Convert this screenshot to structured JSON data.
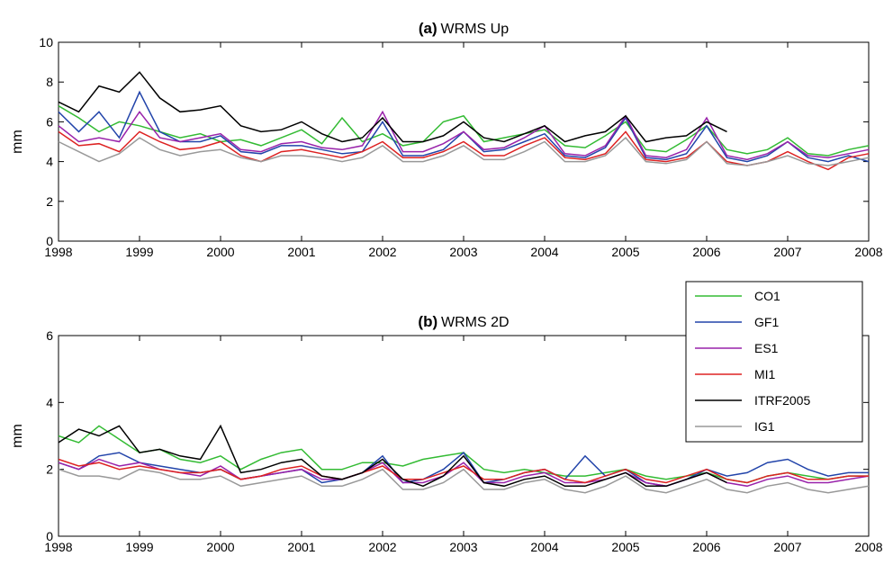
{
  "chart_data": [
    {
      "type": "line",
      "panel_label": "(a)",
      "title": "WRMS Up",
      "y_label": "mm",
      "x": [
        1998,
        1998.25,
        1998.5,
        1998.75,
        1999,
        1999.25,
        1999.5,
        1999.75,
        2000,
        2000.25,
        2000.5,
        2000.75,
        2001,
        2001.25,
        2001.5,
        2001.75,
        2002,
        2002.25,
        2002.5,
        2002.75,
        2003,
        2003.25,
        2003.5,
        2003.75,
        2004,
        2004.25,
        2004.5,
        2004.75,
        2005,
        2005.25,
        2005.5,
        2005.75,
        2006,
        2006.25,
        2006.5,
        2006.75,
        2007,
        2007.25,
        2007.5,
        2007.75,
        2008
      ],
      "xlim": [
        1998,
        2008
      ],
      "xticks": [
        1998,
        1999,
        2000,
        2001,
        2002,
        2003,
        2004,
        2005,
        2006,
        2007,
        2008
      ],
      "ylim": [
        0,
        10
      ],
      "yticks": [
        0,
        2,
        4,
        6,
        8,
        10
      ],
      "legend": false,
      "series": [
        {
          "color": "#33bb33",
          "values": [
            6.8,
            6.2,
            5.5,
            6.0,
            5.8,
            5.5,
            5.2,
            5.4,
            5.0,
            5.1,
            4.8,
            5.2,
            5.6,
            4.9,
            6.2,
            5.0,
            5.4,
            4.8,
            5.0,
            6.0,
            6.3,
            5.0,
            5.2,
            5.4,
            5.6,
            4.8,
            4.7,
            5.3,
            6.0,
            4.6,
            4.5,
            5.1,
            5.8,
            4.6,
            4.4,
            4.6,
            5.2,
            4.4,
            4.3,
            4.6,
            4.8
          ]
        },
        {
          "color": "#2244aa",
          "values": [
            6.5,
            5.5,
            6.5,
            5.2,
            7.5,
            5.5,
            5.0,
            5.0,
            5.3,
            4.5,
            4.4,
            4.8,
            4.8,
            4.6,
            4.4,
            4.5,
            6.0,
            4.3,
            4.3,
            4.6,
            5.5,
            4.5,
            4.6,
            5.0,
            5.4,
            4.3,
            4.2,
            4.7,
            6.2,
            4.2,
            4.1,
            4.4,
            5.8,
            4.2,
            4.0,
            4.3,
            5.0,
            4.2,
            4.0,
            4.3,
            4.0
          ]
        },
        {
          "color": "#9922aa",
          "values": [
            5.8,
            5.0,
            5.2,
            5.0,
            6.5,
            5.2,
            5.0,
            5.2,
            5.4,
            4.6,
            4.5,
            4.9,
            5.0,
            4.7,
            4.6,
            4.8,
            6.5,
            4.5,
            4.5,
            4.9,
            5.5,
            4.6,
            4.7,
            5.2,
            5.8,
            4.4,
            4.3,
            4.8,
            6.3,
            4.3,
            4.2,
            4.6,
            6.2,
            4.3,
            4.1,
            4.4,
            5.0,
            4.3,
            4.2,
            4.4,
            4.6
          ]
        },
        {
          "color": "#dd2222",
          "values": [
            5.5,
            4.8,
            4.9,
            4.5,
            5.5,
            5.0,
            4.6,
            4.7,
            5.0,
            4.3,
            4.0,
            4.5,
            4.6,
            4.4,
            4.2,
            4.5,
            5.0,
            4.2,
            4.2,
            4.5,
            5.0,
            4.3,
            4.3,
            4.8,
            5.2,
            4.2,
            4.1,
            4.4,
            5.5,
            4.1,
            4.0,
            4.2,
            5.0,
            4.0,
            3.8,
            4.0,
            4.5,
            4.0,
            3.6,
            4.2,
            4.4
          ]
        },
        {
          "color": "#000000",
          "values": [
            7.0,
            6.5,
            7.8,
            7.5,
            8.5,
            7.2,
            6.5,
            6.6,
            6.8,
            5.8,
            5.5,
            5.6,
            6.0,
            5.4,
            5.0,
            5.2,
            6.2,
            5.0,
            5.0,
            5.3,
            6.0,
            5.2,
            5.0,
            5.4,
            5.8,
            5.0,
            5.3,
            5.5,
            6.3,
            5.0,
            5.2,
            5.3,
            6.0,
            5.5,
            null,
            null,
            null,
            null,
            null,
            null,
            null
          ]
        },
        {
          "color": "#999999",
          "values": [
            5.0,
            4.5,
            4.0,
            4.4,
            5.2,
            4.6,
            4.3,
            4.5,
            4.6,
            4.2,
            4.0,
            4.3,
            4.3,
            4.2,
            4.0,
            4.2,
            4.8,
            4.0,
            4.0,
            4.3,
            4.8,
            4.1,
            4.1,
            4.5,
            5.0,
            4.0,
            4.0,
            4.3,
            5.2,
            4.0,
            3.9,
            4.1,
            5.0,
            3.9,
            3.8,
            4.0,
            4.3,
            3.9,
            3.8,
            4.0,
            4.2
          ]
        }
      ]
    },
    {
      "type": "line",
      "panel_label": "(b)",
      "title": "WRMS 2D",
      "y_label": "mm",
      "x": [
        1998,
        1998.25,
        1998.5,
        1998.75,
        1999,
        1999.25,
        1999.5,
        1999.75,
        2000,
        2000.25,
        2000.5,
        2000.75,
        2001,
        2001.25,
        2001.5,
        2001.75,
        2002,
        2002.25,
        2002.5,
        2002.75,
        2003,
        2003.25,
        2003.5,
        2003.75,
        2004,
        2004.25,
        2004.5,
        2004.75,
        2005,
        2005.25,
        2005.5,
        2005.75,
        2006,
        2006.25,
        2006.5,
        2006.75,
        2007,
        2007.25,
        2007.5,
        2007.75,
        2008
      ],
      "xlim": [
        1998,
        2008
      ],
      "xticks": [
        1998,
        1999,
        2000,
        2001,
        2002,
        2003,
        2004,
        2005,
        2006,
        2007,
        2008
      ],
      "ylim": [
        0,
        6
      ],
      "yticks": [
        0,
        2,
        4,
        6
      ],
      "legend": "northeast",
      "series": [
        {
          "name": "CO1",
          "color": "#33bb33",
          "values": [
            3.0,
            2.8,
            3.3,
            2.9,
            2.5,
            2.6,
            2.3,
            2.2,
            2.4,
            2.0,
            2.3,
            2.5,
            2.6,
            2.0,
            2.0,
            2.2,
            2.2,
            2.1,
            2.3,
            2.4,
            2.5,
            2.0,
            1.9,
            2.0,
            1.9,
            1.8,
            1.8,
            1.9,
            2.0,
            1.8,
            1.7,
            1.8,
            1.9,
            1.7,
            1.6,
            1.8,
            1.9,
            1.8,
            1.7,
            1.8,
            1.8
          ]
        },
        {
          "name": "GF1",
          "color": "#2244aa",
          "values": [
            2.2,
            2.0,
            2.4,
            2.5,
            2.2,
            2.1,
            2.0,
            1.9,
            2.0,
            1.7,
            1.8,
            1.9,
            2.0,
            1.6,
            1.7,
            1.9,
            2.4,
            1.6,
            1.7,
            2.0,
            2.5,
            1.6,
            1.7,
            1.9,
            2.0,
            1.7,
            2.4,
            1.8,
            2.0,
            1.6,
            1.5,
            1.7,
            2.0,
            1.8,
            1.9,
            2.2,
            2.3,
            2.0,
            1.8,
            1.9,
            1.9
          ]
        },
        {
          "name": "ES1",
          "color": "#9922aa",
          "values": [
            2.2,
            2.0,
            2.3,
            2.1,
            2.2,
            2.0,
            1.9,
            1.8,
            2.1,
            1.7,
            1.8,
            1.9,
            2.0,
            1.7,
            1.7,
            1.9,
            2.2,
            1.6,
            1.6,
            1.8,
            2.2,
            1.6,
            1.6,
            1.8,
            1.9,
            1.6,
            1.6,
            1.7,
            1.9,
            1.6,
            1.5,
            1.7,
            1.9,
            1.6,
            1.5,
            1.7,
            1.8,
            1.6,
            1.6,
            1.7,
            1.8
          ]
        },
        {
          "name": "MI1",
          "color": "#dd2222",
          "values": [
            2.3,
            2.1,
            2.2,
            2.0,
            2.1,
            2.0,
            1.9,
            1.9,
            2.0,
            1.7,
            1.8,
            2.0,
            2.1,
            1.8,
            1.7,
            1.9,
            2.1,
            1.7,
            1.7,
            1.9,
            2.1,
            1.7,
            1.7,
            1.9,
            2.0,
            1.7,
            1.6,
            1.8,
            2.0,
            1.7,
            1.6,
            1.8,
            2.0,
            1.7,
            1.6,
            1.8,
            1.9,
            1.7,
            1.7,
            1.8,
            1.8
          ]
        },
        {
          "name": "ITRF2005",
          "color": "#000000",
          "values": [
            2.8,
            3.2,
            3.0,
            3.3,
            2.5,
            2.6,
            2.4,
            2.3,
            3.3,
            1.9,
            2.0,
            2.2,
            2.3,
            1.8,
            1.7,
            1.9,
            2.3,
            1.7,
            1.5,
            1.8,
            2.4,
            1.6,
            1.5,
            1.7,
            1.8,
            1.5,
            1.5,
            1.7,
            1.9,
            1.5,
            1.5,
            1.7,
            1.9,
            1.6,
            null,
            null,
            null,
            null,
            null,
            null,
            null
          ]
        },
        {
          "name": "IG1",
          "color": "#999999",
          "values": [
            2.0,
            1.8,
            1.8,
            1.7,
            2.0,
            1.9,
            1.7,
            1.7,
            1.8,
            1.5,
            1.6,
            1.7,
            1.8,
            1.5,
            1.5,
            1.7,
            2.0,
            1.4,
            1.4,
            1.6,
            2.0,
            1.4,
            1.4,
            1.6,
            1.7,
            1.4,
            1.3,
            1.5,
            1.8,
            1.4,
            1.3,
            1.5,
            1.7,
            1.4,
            1.3,
            1.5,
            1.6,
            1.4,
            1.3,
            1.4,
            1.5
          ]
        }
      ]
    }
  ]
}
